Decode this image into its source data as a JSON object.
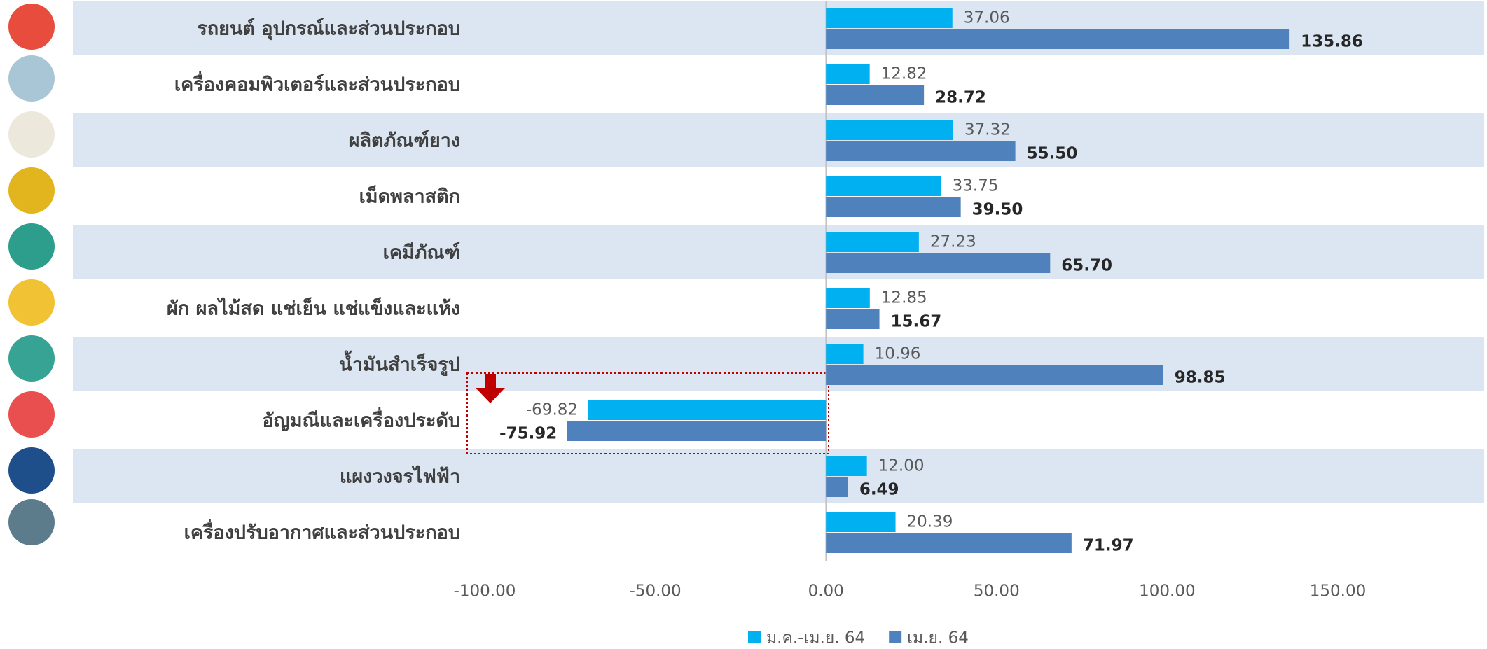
{
  "chart_data": {
    "type": "bar",
    "orientation": "horizontal",
    "categories": [
      "รถยนต์ อุปกรณ์และส่วนประกอบ",
      "เครื่องคอมพิวเตอร์และส่วนประกอบ",
      "ผลิตภัณฑ์ยาง",
      "เม็ดพลาสติก",
      "เคมีภัณฑ์",
      "ผัก ผลไม้สด แช่เย็น แช่แข็งและแห้ง",
      "น้ำมันสำเร็จรูป",
      "อัญมณีและเครื่องประดับ",
      "แผงวงจรไฟฟ้า",
      "เครื่องปรับอากาศและส่วนประกอบ"
    ],
    "series": [
      {
        "name": "ม.ค.-เม.ย. 64",
        "color": "#00b0f0",
        "values": [
          37.06,
          12.82,
          37.32,
          33.75,
          27.23,
          12.85,
          10.96,
          -69.82,
          12.0,
          20.39
        ],
        "value_labels": [
          "37.06",
          "12.82",
          "37.32",
          "33.75",
          "27.23",
          "12.85",
          "10.96",
          "-69.82",
          "12.00",
          "20.39"
        ]
      },
      {
        "name": "เม.ย. 64",
        "color": "#4f81bd",
        "values": [
          135.86,
          28.72,
          55.5,
          39.5,
          65.7,
          15.67,
          98.85,
          -75.92,
          6.49,
          71.97
        ],
        "value_labels": [
          "135.86",
          "28.72",
          "55.50",
          "39.50",
          "65.70",
          "15.67",
          "98.85",
          "-75.92",
          "6.49",
          "71.97"
        ]
      }
    ],
    "xlim": [
      -100,
      150
    ],
    "xticks": [
      {
        "value": -100,
        "label": "-100.00"
      },
      {
        "value": -50,
        "label": "-50.00"
      },
      {
        "value": 0,
        "label": "0.00"
      },
      {
        "value": 50,
        "label": "50.00"
      },
      {
        "value": 100,
        "label": "100.00"
      },
      {
        "value": 150,
        "label": "150.00"
      }
    ],
    "legend": "bottom"
  }
}
